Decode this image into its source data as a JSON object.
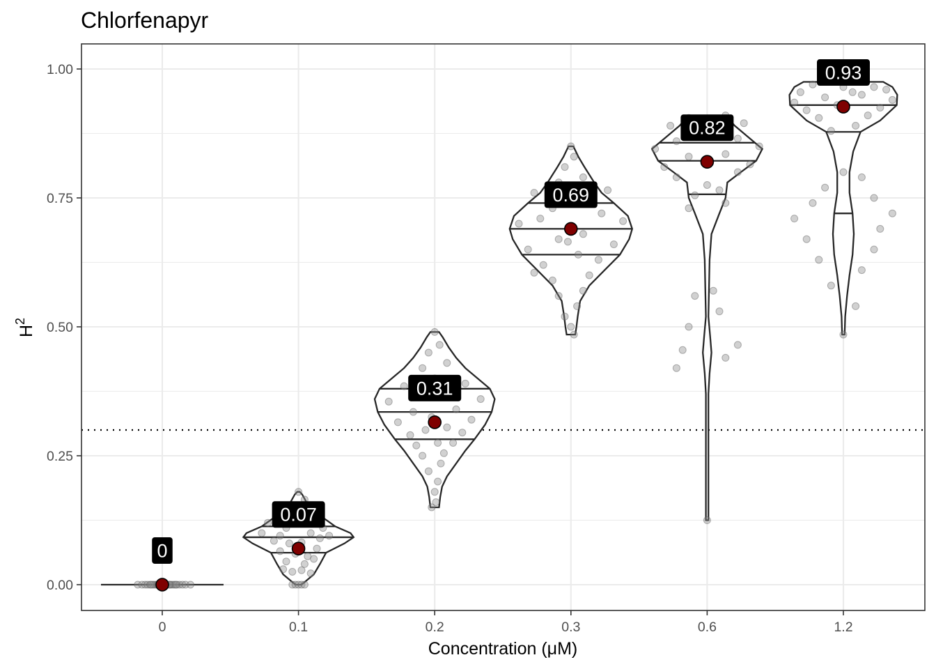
{
  "chart_data": {
    "type": "violin",
    "title": "Chlorfenapyr",
    "xlabel": "Concentration (μM)",
    "ylabel_base": "H",
    "ylabel_sup": "2",
    "ylim": [
      -0.05,
      1.05
    ],
    "y_ticks": [
      0,
      0.25,
      0.5,
      0.75,
      1.0
    ],
    "y_tick_labels": [
      "0.00",
      "0.25",
      "0.50",
      "0.75",
      "1.00"
    ],
    "threshold": 0.3,
    "categories": [
      "0",
      "0.1",
      "0.2",
      "0.3",
      "0.6",
      "1.2"
    ],
    "medians": [
      0,
      0.07,
      0.315,
      0.69,
      0.82,
      0.927
    ],
    "median_labels": [
      "0",
      "0.07",
      "0.31",
      "0.69",
      "0.82",
      "0.93"
    ],
    "quantiles": [
      [
        0,
        0,
        0
      ],
      [
        0.062,
        0.092,
        0.113
      ],
      [
        0.282,
        0.335,
        0.38
      ],
      [
        0.64,
        0.69,
        0.74
      ],
      [
        0.757,
        0.822,
        0.857
      ],
      [
        0.72,
        0.878,
        0.93
      ]
    ],
    "violin_profiles": [
      [
        [
          0,
          1.0
        ]
      ],
      [
        [
          0.0,
          0.05
        ],
        [
          0.02,
          0.25
        ],
        [
          0.04,
          0.35
        ],
        [
          0.062,
          0.45
        ],
        [
          0.08,
          0.75
        ],
        [
          0.092,
          0.9
        ],
        [
          0.1,
          0.85
        ],
        [
          0.113,
          0.6
        ],
        [
          0.13,
          0.4
        ],
        [
          0.145,
          0.25
        ],
        [
          0.16,
          0.13
        ],
        [
          0.175,
          0.06
        ],
        [
          0.18,
          0.02
        ]
      ],
      [
        [
          0.15,
          0.07
        ],
        [
          0.17,
          0.09
        ],
        [
          0.19,
          0.12
        ],
        [
          0.21,
          0.2
        ],
        [
          0.235,
          0.35
        ],
        [
          0.26,
          0.5
        ],
        [
          0.282,
          0.65
        ],
        [
          0.31,
          0.82
        ],
        [
          0.335,
          0.93
        ],
        [
          0.36,
          0.98
        ],
        [
          0.38,
          0.9
        ],
        [
          0.4,
          0.7
        ],
        [
          0.42,
          0.5
        ],
        [
          0.44,
          0.35
        ],
        [
          0.46,
          0.23
        ],
        [
          0.48,
          0.13
        ],
        [
          0.49,
          0.07
        ]
      ],
      [
        [
          0.485,
          0.07
        ],
        [
          0.5,
          0.09
        ],
        [
          0.52,
          0.11
        ],
        [
          0.55,
          0.15
        ],
        [
          0.58,
          0.3
        ],
        [
          0.61,
          0.55
        ],
        [
          0.64,
          0.8
        ],
        [
          0.67,
          0.95
        ],
        [
          0.69,
          1.0
        ],
        [
          0.715,
          0.93
        ],
        [
          0.74,
          0.7
        ],
        [
          0.76,
          0.5
        ],
        [
          0.78,
          0.38
        ],
        [
          0.81,
          0.22
        ],
        [
          0.83,
          0.12
        ],
        [
          0.85,
          0.04
        ]
      ],
      [
        [
          0.125,
          0.02
        ],
        [
          0.2,
          0.02
        ],
        [
          0.3,
          0.02
        ],
        [
          0.37,
          0.02
        ],
        [
          0.41,
          0.04
        ],
        [
          0.45,
          0.07
        ],
        [
          0.48,
          0.05
        ],
        [
          0.52,
          0.02
        ],
        [
          0.57,
          0.03
        ],
        [
          0.63,
          0.04
        ],
        [
          0.68,
          0.07
        ],
        [
          0.72,
          0.2
        ],
        [
          0.75,
          0.3
        ],
        [
          0.78,
          0.33
        ],
        [
          0.8,
          0.55
        ],
        [
          0.822,
          0.8
        ],
        [
          0.845,
          0.9
        ],
        [
          0.87,
          0.65
        ],
        [
          0.89,
          0.45
        ],
        [
          0.91,
          0.3
        ]
      ],
      [
        [
          0.485,
          0.02
        ],
        [
          0.52,
          0.03
        ],
        [
          0.56,
          0.06
        ],
        [
          0.6,
          0.1
        ],
        [
          0.64,
          0.15
        ],
        [
          0.68,
          0.17
        ],
        [
          0.72,
          0.15
        ],
        [
          0.76,
          0.1
        ],
        [
          0.8,
          0.1
        ],
        [
          0.84,
          0.16
        ],
        [
          0.878,
          0.28
        ],
        [
          0.9,
          0.6
        ],
        [
          0.93,
          0.87
        ],
        [
          0.95,
          0.88
        ],
        [
          0.965,
          0.8
        ],
        [
          0.975,
          0.65
        ]
      ]
    ],
    "jitter_points": [
      [
        [
          -0.4,
          0
        ],
        [
          -0.33,
          0
        ],
        [
          -0.28,
          0
        ],
        [
          -0.24,
          0
        ],
        [
          -0.2,
          0
        ],
        [
          -0.15,
          0
        ],
        [
          -0.12,
          0
        ],
        [
          -0.09,
          0
        ],
        [
          -0.06,
          0
        ],
        [
          -0.03,
          0
        ],
        [
          0.02,
          0
        ],
        [
          0.05,
          0
        ],
        [
          0.08,
          0
        ],
        [
          0.11,
          0
        ],
        [
          0.14,
          0
        ],
        [
          0.17,
          0
        ],
        [
          0.2,
          0
        ],
        [
          0.24,
          0
        ],
        [
          0.28,
          0
        ],
        [
          0.33,
          0
        ],
        [
          0.38,
          0
        ],
        [
          0.46,
          0
        ],
        [
          -0.18,
          0
        ],
        [
          0.12,
          0
        ],
        [
          -0.07,
          0
        ],
        [
          0.22,
          0
        ]
      ],
      [
        [
          -0.1,
          0
        ],
        [
          -0.05,
          0
        ],
        [
          0,
          0
        ],
        [
          0.05,
          0
        ],
        [
          0.1,
          0
        ],
        [
          -0.25,
          0.03
        ],
        [
          -0.1,
          0.025
        ],
        [
          0.05,
          0.028
        ],
        [
          0.2,
          0.022
        ],
        [
          -0.2,
          0.045
        ],
        [
          0.1,
          0.04
        ],
        [
          0.25,
          0.05
        ],
        [
          -0.3,
          0.065
        ],
        [
          -0.05,
          0.06
        ],
        [
          0.15,
          0.055
        ],
        [
          0.3,
          0.07
        ],
        [
          -0.4,
          0.085
        ],
        [
          -0.15,
          0.08
        ],
        [
          0.05,
          0.082
        ],
        [
          0.35,
          0.09
        ],
        [
          -0.6,
          0.1
        ],
        [
          -0.3,
          0.095
        ],
        [
          0.2,
          0.1
        ],
        [
          0.5,
          0.095
        ],
        [
          -0.2,
          0.11
        ],
        [
          0.4,
          0.11
        ],
        [
          -0.5,
          0.12
        ],
        [
          0.1,
          0.12
        ],
        [
          -0.1,
          0.135
        ],
        [
          0.25,
          0.13
        ],
        [
          0,
          0.15
        ],
        [
          0.1,
          0.165
        ],
        [
          0,
          0.18
        ]
      ],
      [
        [
          -0.05,
          0.15
        ],
        [
          0.02,
          0.16
        ],
        [
          0,
          0.18
        ],
        [
          0.05,
          0.2
        ],
        [
          -0.1,
          0.22
        ],
        [
          0.1,
          0.235
        ],
        [
          -0.2,
          0.25
        ],
        [
          0.15,
          0.255
        ],
        [
          -0.3,
          0.27
        ],
        [
          0.3,
          0.275
        ],
        [
          -0.4,
          0.29
        ],
        [
          0.45,
          0.295
        ],
        [
          -0.15,
          0.3
        ],
        [
          0.2,
          0.305
        ],
        [
          -0.6,
          0.315
        ],
        [
          0.6,
          0.32
        ],
        [
          -0.35,
          0.335
        ],
        [
          0.35,
          0.34
        ],
        [
          -0.75,
          0.355
        ],
        [
          0.75,
          0.36
        ],
        [
          -0.25,
          0.37
        ],
        [
          0.25,
          0.375
        ],
        [
          -0.5,
          0.385
        ],
        [
          0.5,
          0.39
        ],
        [
          0,
          0.4
        ],
        [
          -0.2,
          0.42
        ],
        [
          0.2,
          0.43
        ],
        [
          -0.1,
          0.45
        ],
        [
          0.08,
          0.465
        ],
        [
          0,
          0.49
        ],
        [
          0.05,
          0.275
        ],
        [
          -0.05,
          0.325
        ]
      ],
      [
        [
          0.05,
          0.485
        ],
        [
          0,
          0.5
        ],
        [
          -0.1,
          0.52
        ],
        [
          0.1,
          0.54
        ],
        [
          -0.2,
          0.56
        ],
        [
          0.2,
          0.57
        ],
        [
          -0.3,
          0.59
        ],
        [
          0.3,
          0.6
        ],
        [
          -0.45,
          0.62
        ],
        [
          0.45,
          0.63
        ],
        [
          -0.7,
          0.65
        ],
        [
          0.7,
          0.66
        ],
        [
          -0.2,
          0.67
        ],
        [
          0.2,
          0.68
        ],
        [
          -0.85,
          0.7
        ],
        [
          0.85,
          0.705
        ],
        [
          -0.5,
          0.71
        ],
        [
          0.5,
          0.72
        ],
        [
          -0.3,
          0.73
        ],
        [
          0.3,
          0.745
        ],
        [
          -0.6,
          0.76
        ],
        [
          0.6,
          0.765
        ],
        [
          -0.2,
          0.78
        ],
        [
          0.2,
          0.79
        ],
        [
          -0.1,
          0.81
        ],
        [
          0.05,
          0.83
        ],
        [
          0,
          0.85
        ],
        [
          -0.05,
          0.665
        ],
        [
          0.12,
          0.64
        ],
        [
          -0.6,
          0.605
        ]
      ],
      [
        [
          0,
          0.125
        ],
        [
          -0.5,
          0.42
        ],
        [
          0.3,
          0.44
        ],
        [
          -0.4,
          0.455
        ],
        [
          0.5,
          0.465
        ],
        [
          -0.3,
          0.5
        ],
        [
          0.2,
          0.53
        ],
        [
          -0.2,
          0.56
        ],
        [
          0.1,
          0.57
        ],
        [
          -0.3,
          0.73
        ],
        [
          0.3,
          0.74
        ],
        [
          -0.2,
          0.755
        ],
        [
          0.2,
          0.765
        ],
        [
          0,
          0.775
        ],
        [
          -0.5,
          0.79
        ],
        [
          0.5,
          0.8
        ],
        [
          -0.7,
          0.81
        ],
        [
          0.7,
          0.815
        ],
        [
          -0.3,
          0.83
        ],
        [
          0.3,
          0.835
        ],
        [
          -0.85,
          0.845
        ],
        [
          0.85,
          0.85
        ],
        [
          -0.5,
          0.86
        ],
        [
          0.5,
          0.865
        ],
        [
          -0.2,
          0.875
        ],
        [
          0.2,
          0.88
        ],
        [
          -0.6,
          0.89
        ],
        [
          0.6,
          0.895
        ],
        [
          0,
          0.9
        ],
        [
          -0.3,
          0.905
        ],
        [
          0.3,
          0.91
        ]
      ],
      [
        [
          0,
          0.485
        ],
        [
          0.2,
          0.54
        ],
        [
          -0.2,
          0.58
        ],
        [
          0.3,
          0.61
        ],
        [
          -0.4,
          0.63
        ],
        [
          0.5,
          0.65
        ],
        [
          -0.6,
          0.67
        ],
        [
          0.6,
          0.69
        ],
        [
          -0.8,
          0.71
        ],
        [
          0.8,
          0.72
        ],
        [
          -0.5,
          0.74
        ],
        [
          0.5,
          0.75
        ],
        [
          -0.3,
          0.77
        ],
        [
          0.3,
          0.79
        ],
        [
          0,
          0.8
        ],
        [
          -0.2,
          0.88
        ],
        [
          0.2,
          0.89
        ],
        [
          -0.4,
          0.905
        ],
        [
          0.4,
          0.91
        ],
        [
          -0.6,
          0.92
        ],
        [
          0.6,
          0.925
        ],
        [
          -0.8,
          0.935
        ],
        [
          0.8,
          0.94
        ],
        [
          -0.3,
          0.945
        ],
        [
          0.3,
          0.95
        ],
        [
          -0.7,
          0.955
        ],
        [
          0.7,
          0.96
        ],
        [
          0,
          0.965
        ],
        [
          -0.5,
          0.97
        ],
        [
          0.5,
          0.965
        ],
        [
          -0.1,
          0.93
        ],
        [
          0.15,
          0.955
        ]
      ]
    ]
  }
}
